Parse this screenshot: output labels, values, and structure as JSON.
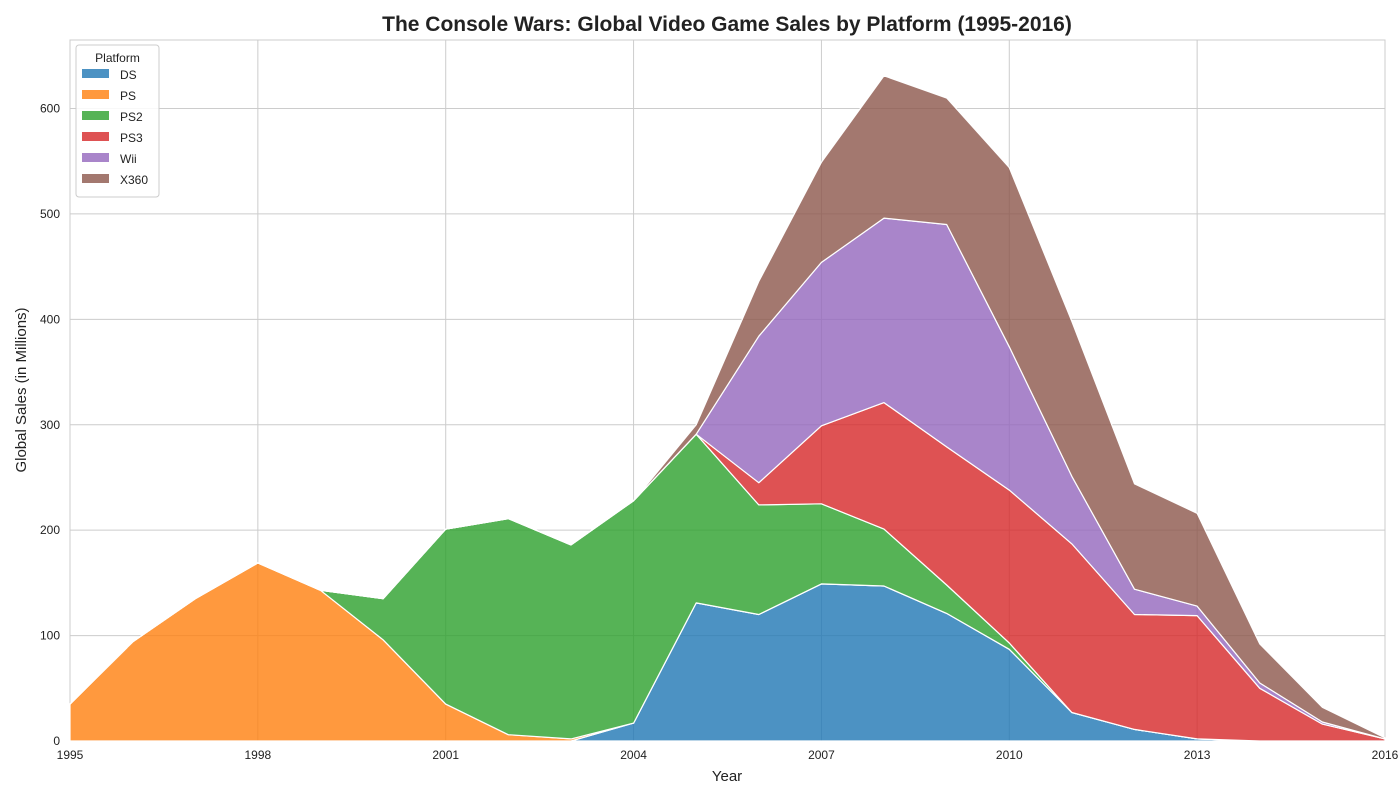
{
  "chart_data": {
    "type": "area",
    "stacked": true,
    "title": "The Console Wars: Global Video Game Sales by Platform (1995-2016)",
    "xlabel": "Year",
    "ylabel": "Global Sales (in Millions)",
    "xlim": [
      1995,
      2016
    ],
    "ylim": [
      0,
      665
    ],
    "xticks": [
      1995,
      1998,
      2001,
      2004,
      2007,
      2010,
      2013,
      2016
    ],
    "yticks": [
      0,
      100,
      200,
      300,
      400,
      500,
      600
    ],
    "grid": true,
    "legend": {
      "title": "Platform",
      "placement": "top-left"
    },
    "x": [
      1995,
      1996,
      1997,
      1998,
      1999,
      2000,
      2001,
      2002,
      2003,
      2004,
      2005,
      2006,
      2007,
      2008,
      2009,
      2010,
      2011,
      2012,
      2013,
      2014,
      2015,
      2016
    ],
    "series": [
      {
        "name": "DS",
        "color": "#1f77b4",
        "values": [
          0,
          0,
          0,
          0,
          0,
          0,
          0,
          0,
          0,
          17,
          131,
          120,
          149,
          147,
          121,
          87,
          27,
          11,
          2,
          0,
          0,
          0
        ]
      },
      {
        "name": "PS",
        "color": "#ff7f0e",
        "values": [
          35,
          94,
          135,
          169,
          143,
          96,
          35,
          6,
          2,
          0,
          0,
          0,
          0,
          0,
          0,
          0,
          0,
          0,
          0,
          0,
          0,
          0
        ]
      },
      {
        "name": "PS2",
        "color": "#2ca02c",
        "values": [
          0,
          0,
          0,
          0,
          0,
          39,
          166,
          205,
          184,
          211,
          160,
          104,
          76,
          54,
          27,
          6,
          0,
          0,
          0,
          0,
          0,
          0
        ]
      },
      {
        "name": "PS3",
        "color": "#d62728",
        "values": [
          0,
          0,
          0,
          0,
          0,
          0,
          0,
          0,
          0,
          0,
          0,
          21,
          74,
          120,
          131,
          145,
          160,
          109,
          117,
          50,
          16,
          2
        ]
      },
      {
        "name": "Wii",
        "color": "#9467bd",
        "values": [
          0,
          0,
          0,
          0,
          0,
          0,
          0,
          0,
          0,
          0,
          0,
          139,
          155,
          175,
          211,
          136,
          64,
          24,
          9,
          5,
          2,
          0
        ]
      },
      {
        "name": "X360",
        "color": "#8c564b",
        "values": [
          0,
          0,
          0,
          0,
          0,
          0,
          0,
          0,
          0,
          0,
          9,
          52,
          95,
          135,
          120,
          170,
          147,
          100,
          88,
          37,
          14,
          1
        ]
      }
    ]
  }
}
